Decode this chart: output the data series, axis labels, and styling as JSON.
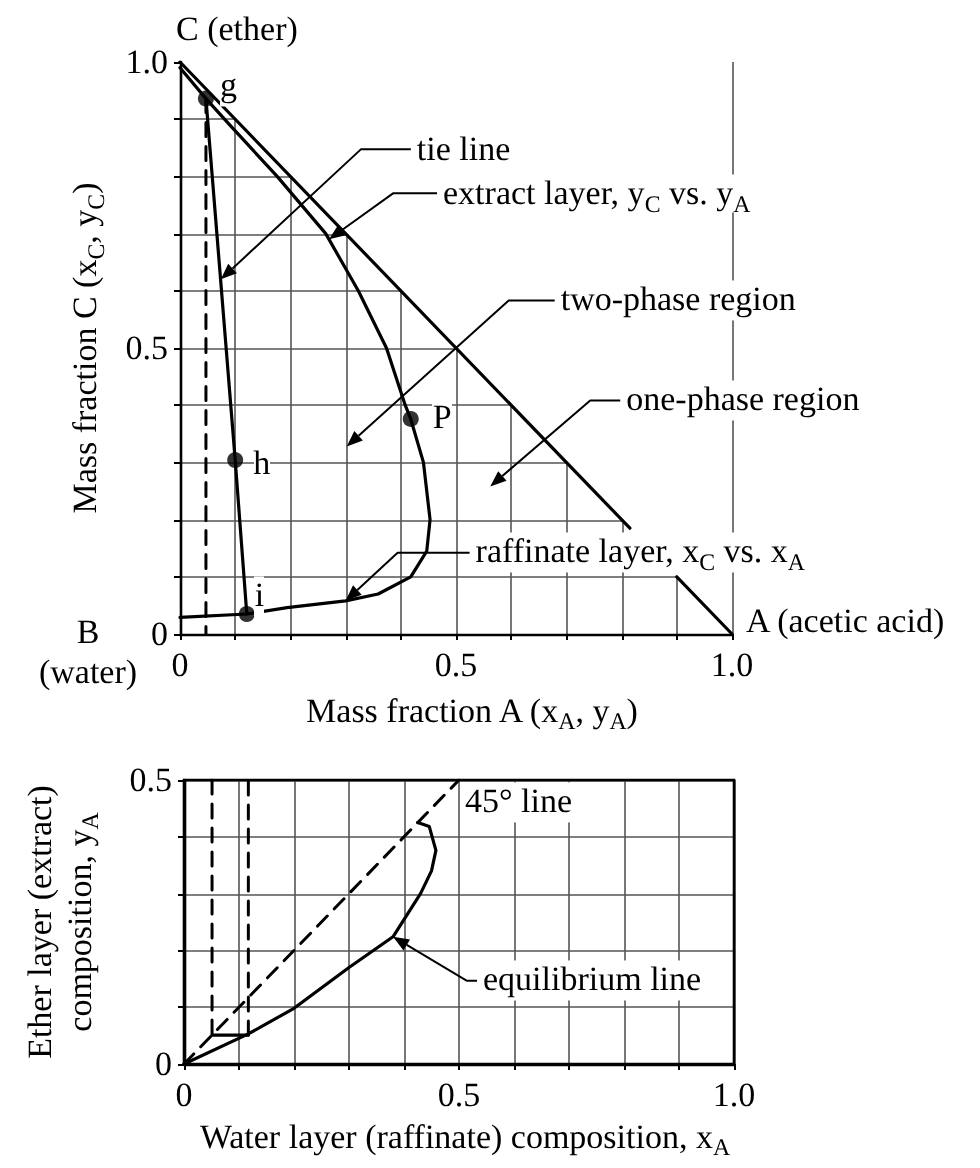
{
  "chart_data": [
    {
      "type": "line",
      "xlabel": "Mass fraction A (x$_{A}$, y$_{A}$)",
      "ylabel": "Mass fraction C (x$_{C}$, y$_{C}$)",
      "xlim": [
        0,
        1
      ],
      "ylim": [
        0,
        1
      ],
      "xticks": [
        {
          "value": 0,
          "label": "0"
        },
        {
          "value": 0.1,
          "label": null
        },
        {
          "value": 0.2,
          "label": null
        },
        {
          "value": 0.3,
          "label": null
        },
        {
          "value": 0.4,
          "label": null
        },
        0.5,
        {
          "value": 0.6,
          "label": null
        },
        {
          "value": 0.7,
          "label": null
        },
        {
          "value": 0.8,
          "label": null
        },
        {
          "value": 0.9,
          "label": null
        },
        {
          "value": 1,
          "label": "1.0"
        }
      ],
      "yticks": [
        {
          "value": 0,
          "label": "0"
        },
        {
          "value": 0.1,
          "label": null
        },
        {
          "value": 0.2,
          "label": null
        },
        {
          "value": 0.3,
          "label": null
        },
        {
          "value": 0.4,
          "label": null
        },
        0.5,
        {
          "value": 0.6,
          "label": null
        },
        {
          "value": 0.7,
          "label": null
        },
        {
          "value": 0.8,
          "label": null
        },
        {
          "value": 0.9,
          "label": null
        },
        {
          "value": 1,
          "label": "1.0"
        }
      ],
      "grid": true,
      "series": [
        {
          "color": "#000000",
          "x": [
            0,
            0.815,
            0.86,
            0.9,
            1
          ],
          "values": [
            1,
            0.185,
            null,
            0.1,
            0
          ]
        },
        {
          "color": "#000000",
          "x": [
            0,
            0.047,
            0.09,
            0.176,
            0.264,
            0.323,
            0.374,
            0.408,
            0.418
          ],
          "values": [
            0.99,
            0.936,
            0.89,
            0.8,
            0.7,
            0.6,
            0.5,
            0.4,
            0.376
          ]
        },
        {
          "color": "#000000",
          "x": [
            0.418,
            0.441,
            0.453,
            0.447,
            0.418,
            0.359,
            0.3,
            0.194,
            0.121,
            0
          ],
          "values": [
            0.376,
            0.3,
            0.2,
            0.145,
            0.1,
            0.07,
            0.058,
            0.046,
            0.035,
            0.029
          ]
        },
        {
          "color": "#000000",
          "x": [
            0.047,
            0.1,
            0.121
          ],
          "values": [
            0.936,
            0.304,
            0.035
          ]
        },
        {
          "type": "scatter",
          "color": "#000000",
          "x": [
            0.047,
            0.1,
            0.121,
            0.418
          ],
          "values": [
            0.936,
            0.304,
            0.035,
            0.376
          ],
          "marker": "circle"
        },
        {
          "color": "#000000",
          "x": [
            0.047,
            0.047
          ],
          "values": [
            0.936,
            0
          ],
          "line_style": "dashed"
        }
      ],
      "annotations": [
        {
          "text": "C (ether)",
          "x": 0,
          "y": 1
        },
        "B\n(water)",
        {
          "text": "A (acetic acid)",
          "x": 1,
          "y": 0
        },
        {
          "text": "g",
          "x": 0.047,
          "y": 0.936
        },
        {
          "text": "h",
          "x": 0.1,
          "y": 0.304
        },
        {
          "text": "i",
          "x": 0.121,
          "y": 0.035
        },
        {
          "text": "P",
          "x": 0.418,
          "y": 0.376
        },
        {
          "text": "tie line",
          "x": 0.074,
          "y": 0.62
        },
        {
          "text": "extract layer, y$_{C}$ vs. y$_{A}$",
          "x": 0.27,
          "y": 0.69
        },
        {
          "text": "raffinate layer, x$_{C}$ vs. x$_{A}$",
          "x": 0.3,
          "y": 0.058
        },
        "two-phase region",
        "one-phase region"
      ]
    },
    {
      "type": "line",
      "xlabel": "Water layer (raffinate) composition, x$_{A}$",
      "ylabel": "Ether layer (extract)\ncomposition, y$_{A}$",
      "xlim": [
        0,
        1
      ],
      "ylim": [
        0,
        0.5
      ],
      "xticks": [
        {
          "value": 0,
          "label": "0"
        },
        {
          "value": 0.1,
          "label": null
        },
        {
          "value": 0.2,
          "label": null
        },
        {
          "value": 0.3,
          "label": null
        },
        {
          "value": 0.4,
          "label": null
        },
        0.5,
        {
          "value": 0.6,
          "label": null
        },
        {
          "value": 0.7,
          "label": null
        },
        {
          "value": 0.8,
          "label": null
        },
        {
          "value": 0.9,
          "label": null
        },
        {
          "value": 1,
          "label": "1.0"
        }
      ],
      "yticks": [
        {
          "value": 0,
          "label": "0"
        },
        {
          "value": 0.1,
          "label": null
        },
        {
          "value": 0.2,
          "label": null
        },
        {
          "value": 0.3,
          "label": null
        },
        {
          "value": 0.4,
          "label": null
        },
        0.5
      ],
      "grid": true,
      "series": [
        {
          "name": "45° line",
          "color": "#000000",
          "x": [
            0,
            0.5
          ],
          "values": [
            0,
            0.5
          ],
          "line_style": "dashed"
        },
        {
          "color": "#000000",
          "x": [
            0,
            0.117,
            0.2,
            0.3,
            0.38,
            0.43,
            0.45,
            0.458,
            0.446,
            0.425
          ],
          "values": [
            0,
            0.053,
            0.098,
            0.17,
            0.224,
            0.3,
            0.34,
            0.376,
            0.418,
            0.425
          ]
        },
        {
          "color": "#000000",
          "x": [
            0.051,
            0.051
          ],
          "values": [
            0.5,
            0.051
          ],
          "line_style": "dashed"
        },
        {
          "color": "#000000",
          "x": [
            0.051,
            0.117
          ],
          "values": [
            0.051,
            0.051
          ]
        },
        {
          "color": "#000000",
          "x": [
            0.117,
            0.117
          ],
          "values": [
            0.051,
            0.5
          ],
          "line_style": "dashed"
        }
      ],
      "annotations": [
        {
          "text": "equilibrium line",
          "x": 0.38,
          "y": 0.224
        }
      ]
    }
  ]
}
